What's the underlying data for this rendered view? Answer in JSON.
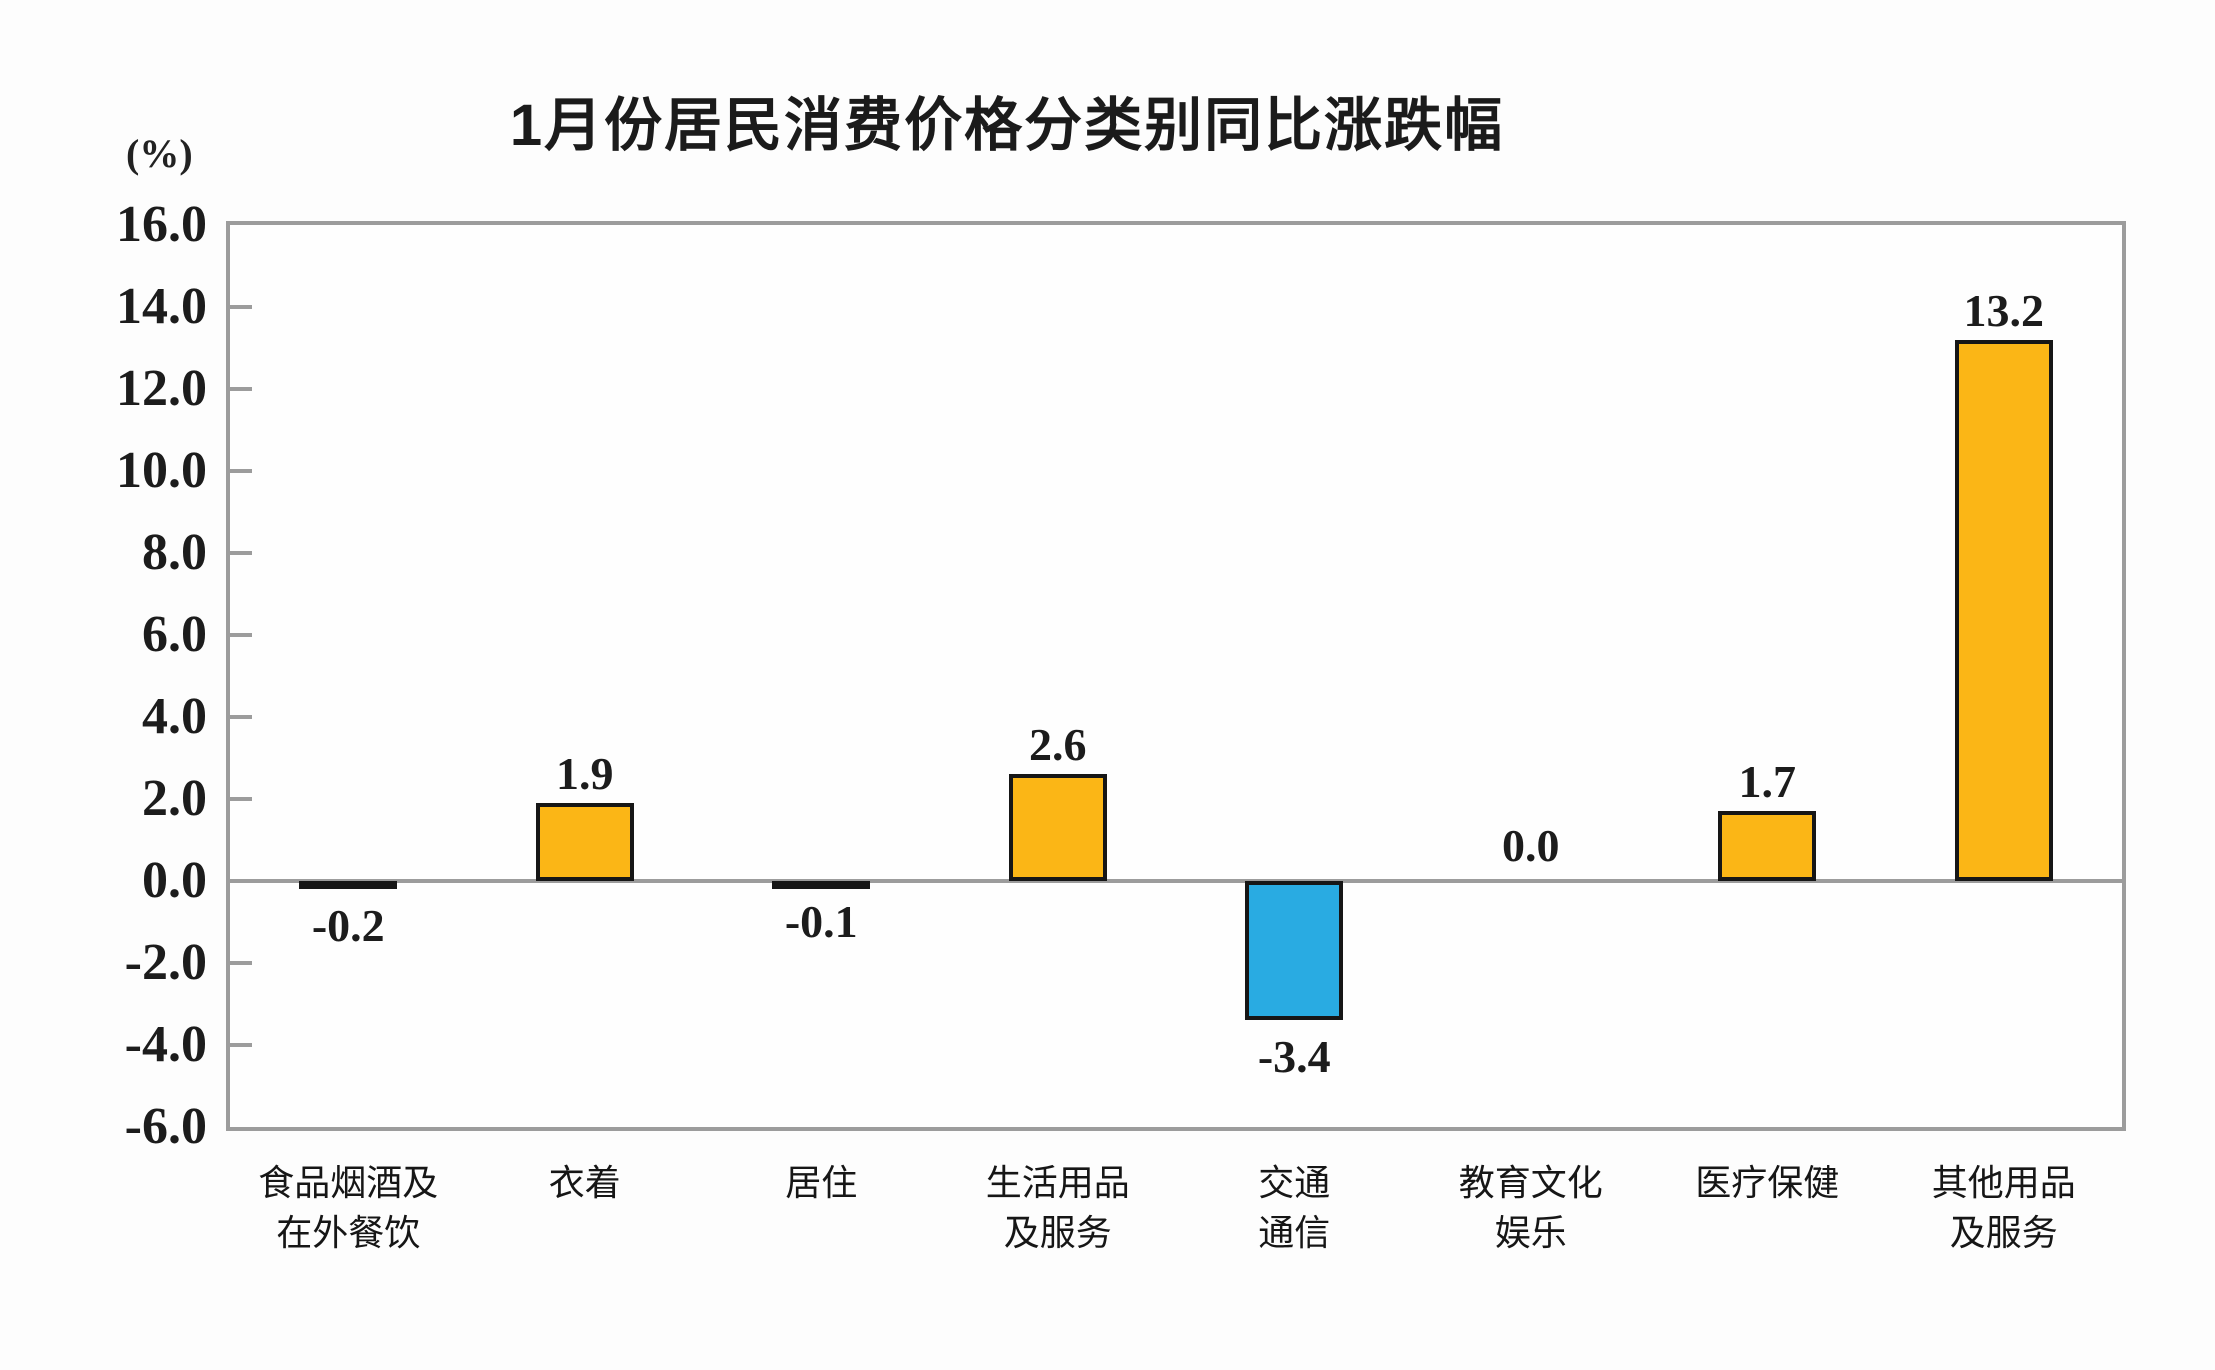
{
  "chart_data": {
    "type": "bar",
    "title": "1月份居民消费价格分类别同比涨跌幅",
    "unit_label": "(%)",
    "categories": [
      "食品烟酒及\n在外餐饮",
      "衣着",
      "居住",
      "生活用品\n及服务",
      "交通\n通信",
      "教育文化\n娱乐",
      "医疗保健",
      "其他用品\n及服务"
    ],
    "values": [
      -0.2,
      1.9,
      -0.1,
      2.6,
      -3.4,
      0.0,
      1.7,
      13.2
    ],
    "data_labels": [
      "-0.2",
      "1.9",
      "-0.1",
      "2.6",
      "-3.4",
      "0.0",
      "1.7",
      "13.2"
    ],
    "ylim": [
      -6.0,
      16.0
    ],
    "ytick_step": 2.0,
    "ytick_labels": [
      "16.0",
      "14.0",
      "12.0",
      "10.0",
      "8.0",
      "6.0",
      "4.0",
      "2.0",
      "0.0",
      "-2.0",
      "-4.0",
      "-6.0"
    ],
    "grid": false,
    "legend": "none",
    "colors": {
      "positive_bar": "#FBB616",
      "negative_bar": "#29ABE2",
      "bar_border": "#161616",
      "axis_frame": "#9C9C9C",
      "text": "#1C1C1C"
    }
  }
}
